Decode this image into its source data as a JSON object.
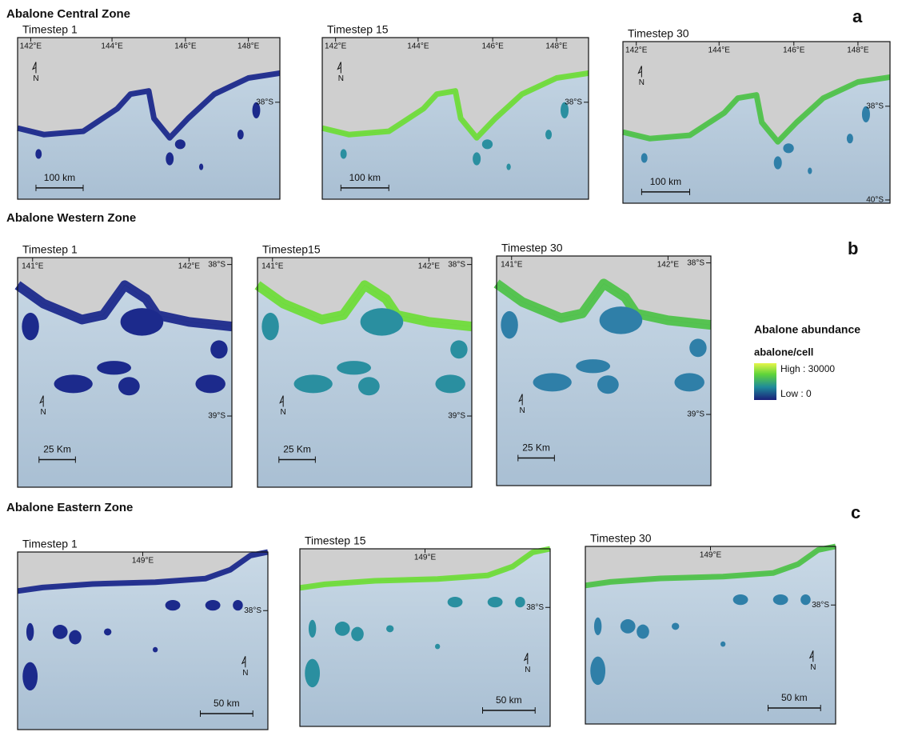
{
  "zones": [
    {
      "title": "Abalone Central Zone",
      "letter": "a",
      "panels": [
        {
          "label": "Timestep 1",
          "scale": "100 km",
          "lon_ticks": [
            "142°E",
            "144°E",
            "146°E",
            "148°E"
          ],
          "lat_ticks": [
            "38°S"
          ],
          "north": "N"
        },
        {
          "label": "Timestep 15",
          "scale": "100 km",
          "lon_ticks": [
            "142°E",
            "144°E",
            "146°E",
            "148°E"
          ],
          "lat_ticks": [
            "38°S"
          ],
          "north": "N"
        },
        {
          "label": "Timestep 30",
          "scale": "100 km",
          "lon_ticks": [
            "142°E",
            "144°E",
            "146°E",
            "148°E"
          ],
          "lat_ticks": [
            "38°S",
            "40°S"
          ],
          "north": "N"
        }
      ]
    },
    {
      "title": "Abalone Western Zone",
      "letter": "b",
      "panels": [
        {
          "label": "Timestep 1",
          "scale": "25 Km",
          "lon_ticks": [
            "141°E",
            "142°E"
          ],
          "lat_ticks": [
            "38°S",
            "39°S"
          ],
          "north": "N"
        },
        {
          "label": "Timestep15",
          "scale": "25 Km",
          "lon_ticks": [
            "141°E",
            "142°E"
          ],
          "lat_ticks": [
            "38°S",
            "39°S"
          ],
          "north": "N"
        },
        {
          "label": "Timestep 30",
          "scale": "25 Km",
          "lon_ticks": [
            "141°E",
            "142°E"
          ],
          "lat_ticks": [
            "38°S",
            "39°S"
          ],
          "north": "N"
        }
      ]
    },
    {
      "title": "Abalone Eastern Zone",
      "letter": "c",
      "panels": [
        {
          "label": "Timestep 1",
          "scale": "50 km",
          "lon_ticks": [
            "149°E"
          ],
          "lat_ticks": [
            "38°S"
          ],
          "north": "N"
        },
        {
          "label": "Timestep 15",
          "scale": "50 km",
          "lon_ticks": [
            "149°E"
          ],
          "lat_ticks": [
            "38°S"
          ],
          "north": "N"
        },
        {
          "label": "Timestep 30",
          "scale": "50 km",
          "lon_ticks": [
            "149°E"
          ],
          "lat_ticks": [
            "38°S"
          ],
          "north": "N"
        }
      ]
    }
  ],
  "legend": {
    "title": "Abalone abundance",
    "unit": "abalone/cell",
    "high": "High : 30000",
    "low": "Low : 0"
  }
}
